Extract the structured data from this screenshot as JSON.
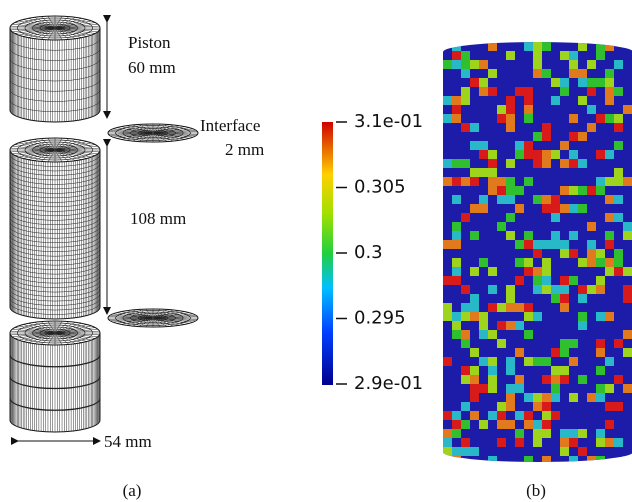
{
  "panel_a": {
    "labels": {
      "piston": "Piston",
      "piston_length": "60 mm",
      "interface": "Interface",
      "interface_thickness": "2 mm",
      "specimen_length": "108 mm",
      "diameter": "54 mm"
    },
    "caption": "(a)"
  },
  "panel_b": {
    "colorbar": {
      "ticks": [
        {
          "value": 0.31,
          "label": "3.1e-01"
        },
        0.305,
        0.3,
        0.295,
        {
          "value": 0.29,
          "label": "2.9e-01"
        }
      ]
    },
    "caption": "(b)"
  }
}
